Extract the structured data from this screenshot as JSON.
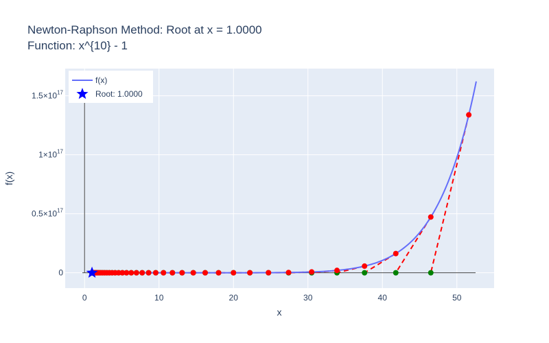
{
  "chart_data": {
    "type": "line",
    "title": "Newton-Raphson Method: Root at x = 1.0000",
    "subtitle": "Function: x^{10} - 1",
    "xlabel": "x",
    "ylabel": "f(x)",
    "xlim": [
      -2.6,
      55
    ],
    "ylim": [
      -1.3e+16,
      1.73e+17
    ],
    "x_ticks": [
      0,
      10,
      20,
      30,
      40,
      50
    ],
    "x_tick_labels": [
      "0",
      "10",
      "20",
      "30",
      "40",
      "50"
    ],
    "y_ticks": [
      0,
      5e+16,
      1e+17,
      1.5e+17
    ],
    "y_tick_labels": [
      {
        "mantissa": "0",
        "exp": ""
      },
      {
        "mantissa": "0.5×10",
        "exp": "17"
      },
      {
        "mantissa": "1×10",
        "exp": "17"
      },
      {
        "mantissa": "1.5×10",
        "exp": "17"
      }
    ],
    "grid": true,
    "legend_position": "top-left",
    "series": [
      {
        "name": "f(x)",
        "kind": "function",
        "x_range": [
          1,
          52.6
        ],
        "color": "#636efa"
      },
      {
        "name": "Root: 1.0000",
        "kind": "root-marker",
        "x": 1.0,
        "y": 0,
        "color": "#0000ff"
      }
    ],
    "iterations_x": [
      51.6,
      46.5,
      41.8,
      37.6,
      33.9,
      30.5,
      27.4,
      24.7,
      22.2,
      20.0,
      18.0,
      16.2,
      14.6,
      13.1,
      11.8,
      10.6,
      9.56,
      8.6,
      7.74,
      6.97,
      6.27,
      5.64,
      5.08,
      4.57,
      4.11,
      3.7,
      3.33,
      3.0,
      2.7,
      2.43,
      2.19,
      1.97,
      1.78,
      1.61,
      1.46,
      1.33,
      1.21,
      1.11,
      1.04,
      1.005,
      1.0
    ],
    "colors": {
      "function": "#636efa",
      "iteration_point": "#ff0000",
      "next_estimate": "#008000",
      "tangent": "#ff0000",
      "root": "#0000ff",
      "plot_bg": "#e5ecf6",
      "grid": "#ffffff",
      "text": "#2a3f5f"
    }
  }
}
